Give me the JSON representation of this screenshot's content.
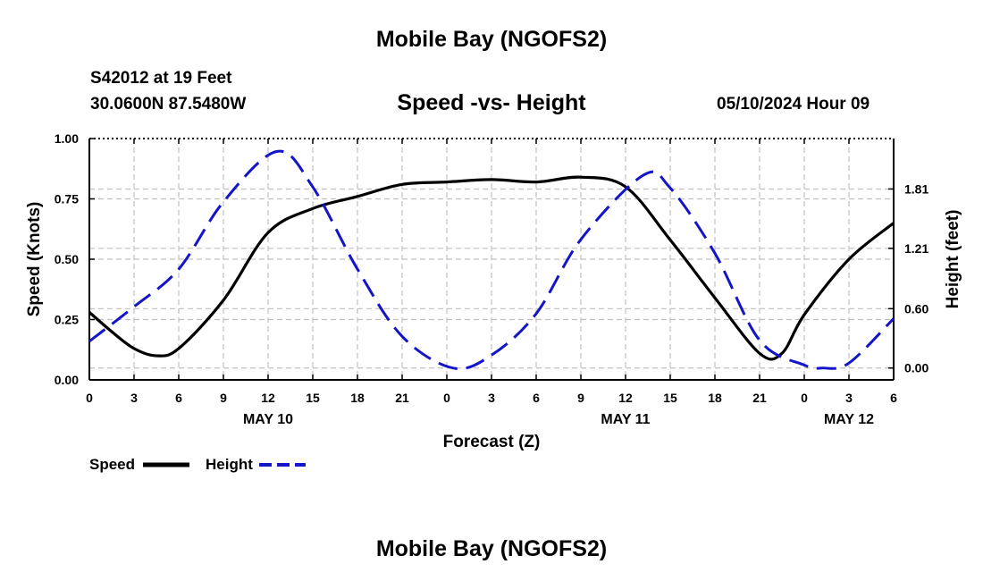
{
  "header": {
    "title": "Mobile Bay (NGOFS2)",
    "station": "S42012 at 19 Feet",
    "coordinates": "30.0600N  87.5480W",
    "chart_title": "Speed -vs- Height",
    "datetime": "05/10/2024 Hour 09"
  },
  "footer": {
    "title": "Mobile Bay (NGOFS2)"
  },
  "colors": {
    "speed": "#000000",
    "height": "#1414c8",
    "grid": "#c0c0c0"
  },
  "chart_data": {
    "type": "line",
    "title": "Speed -vs- Height",
    "xlabel": "Forecast (Z)",
    "ylabel": "Speed (Knots)",
    "ylabel_right": "Height (feet)",
    "x_range_hours": [
      0,
      54
    ],
    "x_ticks": [
      "0",
      "3",
      "6",
      "9",
      "12",
      "15",
      "18",
      "21",
      "0",
      "3",
      "6",
      "9",
      "12",
      "15",
      "18",
      "21",
      "0",
      "3",
      "6"
    ],
    "date_labels": [
      {
        "label": "MAY 10",
        "hour": 12
      },
      {
        "label": "MAY 11",
        "hour": 36
      },
      {
        "label": "MAY 12",
        "hour": 51
      }
    ],
    "ylim": [
      0,
      1.0
    ],
    "y_ticks": [
      "0.00",
      "0.25",
      "0.50",
      "0.75",
      "1.00"
    ],
    "y_ticks_right": [
      "0.00",
      "0.60",
      "1.21",
      "1.81"
    ],
    "ylim_right": [
      -0.12,
      2.32
    ],
    "grid": true,
    "legend_position": "bottom-left",
    "series": [
      {
        "name": "Speed",
        "axis": "left",
        "style": "solid",
        "x": [
          0,
          1.5,
          3,
          4.5,
          6,
          9,
          12,
          15,
          18,
          21,
          24,
          27,
          30,
          33,
          36,
          39,
          42,
          45,
          46.5,
          48,
          51,
          54
        ],
        "y": [
          0.28,
          0.2,
          0.13,
          0.1,
          0.13,
          0.33,
          0.61,
          0.71,
          0.76,
          0.81,
          0.82,
          0.83,
          0.82,
          0.84,
          0.8,
          0.58,
          0.34,
          0.11,
          0.11,
          0.27,
          0.5,
          0.65
        ]
      },
      {
        "name": "Height",
        "axis": "right",
        "style": "dashed",
        "x": [
          0,
          3,
          6,
          9,
          12.6,
          15,
          18,
          21,
          24.4,
          27,
          30,
          33,
          37.2,
          39,
          42,
          45,
          48,
          49.2,
          51,
          54
        ],
        "y": [
          0.27,
          0.62,
          1.0,
          1.68,
          2.19,
          1.83,
          1.0,
          0.32,
          0.0,
          0.13,
          0.55,
          1.3,
          1.95,
          1.82,
          1.16,
          0.28,
          0.03,
          0.0,
          0.05,
          0.5
        ]
      }
    ]
  }
}
